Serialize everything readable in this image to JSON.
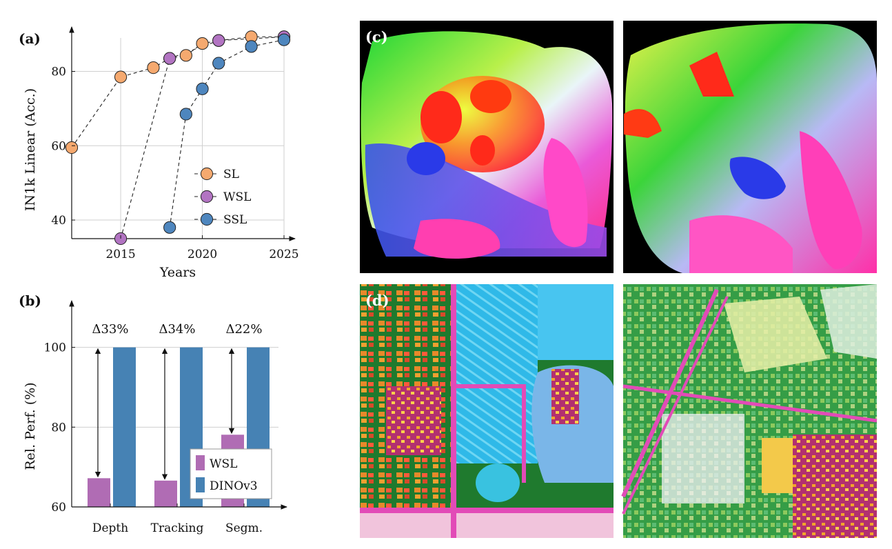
{
  "panels": {
    "a": "(a)",
    "b": "(b)",
    "c": "(c)",
    "d": "(d)"
  },
  "chart_data": [
    {
      "type": "line",
      "title": "(a)",
      "xlabel": "Years",
      "ylabel": "IN1k Linear (Acc.)",
      "xlim": [
        2012,
        2025
      ],
      "ylim": [
        35,
        89
      ],
      "xticks": [
        2015,
        2020,
        2025
      ],
      "yticks": [
        40,
        60,
        80
      ],
      "grid": true,
      "legend": "center-right",
      "series": [
        {
          "name": "SL",
          "color": "#f5a96f",
          "x": [
            2012,
            2015,
            2017,
            2018,
            2019,
            2020,
            2021,
            2023,
            2025
          ],
          "y": [
            59.5,
            78.5,
            81,
            83.5,
            84.3,
            87.5,
            88.3,
            89.3,
            89.3
          ]
        },
        {
          "name": "WSL",
          "color": "#b274c2",
          "x": [
            2015,
            2018,
            2021,
            2025
          ],
          "y": [
            35,
            83.5,
            88.3,
            89.3
          ]
        },
        {
          "name": "SSL",
          "color": "#4e86be",
          "x": [
            2018,
            2019,
            2020,
            2021,
            2023,
            2025
          ],
          "y": [
            38,
            68.5,
            75.3,
            82.2,
            86.7,
            88.5
          ]
        }
      ]
    },
    {
      "type": "bar",
      "title": "(b)",
      "xlabel": "",
      "ylabel": "Rel. Perf. (%)",
      "ylim": [
        60,
        111
      ],
      "yticks": [
        60,
        80,
        100
      ],
      "grid": true,
      "legend": "bottom-right",
      "categories": [
        "Depth",
        "Tracking",
        "Segm."
      ],
      "series": [
        {
          "name": "WSL",
          "color": "#b06cb4",
          "values": [
            67.2,
            66.6,
            78.1
          ]
        },
        {
          "name": "DINOv3",
          "color": "#4682b4",
          "values": [
            100,
            100,
            100
          ]
        }
      ],
      "annotations": [
        "Δ33%",
        "Δ34%",
        "Δ22%"
      ]
    }
  ],
  "images": {
    "c_left": "cat-feature-map-left",
    "c_right": "cat-feature-map-right",
    "d_left": "aerial-feature-map-left",
    "d_right": "aerial-feature-map-right"
  }
}
